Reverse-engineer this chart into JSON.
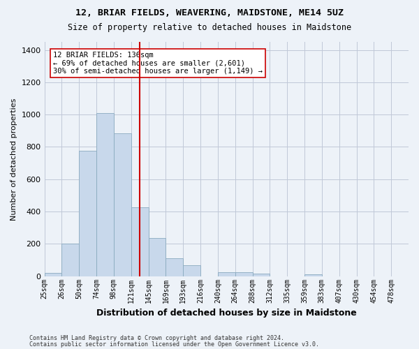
{
  "title": "12, BRIAR FIELDS, WEAVERING, MAIDSTONE, ME14 5UZ",
  "subtitle": "Size of property relative to detached houses in Maidstone",
  "xlabel": "Distribution of detached houses by size in Maidstone",
  "ylabel": "Number of detached properties",
  "footnote1": "Contains HM Land Registry data © Crown copyright and database right 2024.",
  "footnote2": "Contains public sector information licensed under the Open Government Licence v3.0.",
  "bin_labels": [
    "25sqm",
    "26sqm",
    "50sqm",
    "74sqm",
    "98sqm",
    "121sqm",
    "145sqm",
    "169sqm",
    "193sqm",
    "216sqm",
    "240sqm",
    "264sqm",
    "288sqm",
    "312sqm",
    "335sqm",
    "359sqm",
    "383sqm",
    "407sqm",
    "430sqm",
    "454sqm",
    "478sqm"
  ],
  "bar_values": [
    20,
    200,
    775,
    1010,
    885,
    425,
    235,
    110,
    68,
    0,
    25,
    25,
    15,
    0,
    0,
    10,
    0,
    0,
    0,
    0,
    0
  ],
  "bar_color": "#c8d8eb",
  "bar_edge_color": "#8aaabf",
  "vline_bin_index": 5.5,
  "vline_color": "#cc0000",
  "annotation_text": "12 BRIAR FIELDS: 136sqm\n← 69% of detached houses are smaller (2,601)\n30% of semi-detached houses are larger (1,149) →",
  "annotation_box_color": "#ffffff",
  "annotation_box_edge": "#cc0000",
  "ylim": [
    0,
    1450
  ],
  "yticks": [
    0,
    200,
    400,
    600,
    800,
    1000,
    1200,
    1400
  ],
  "grid_color": "#c0c8d8",
  "background_color": "#edf2f8",
  "axes_background": "#edf2f8"
}
